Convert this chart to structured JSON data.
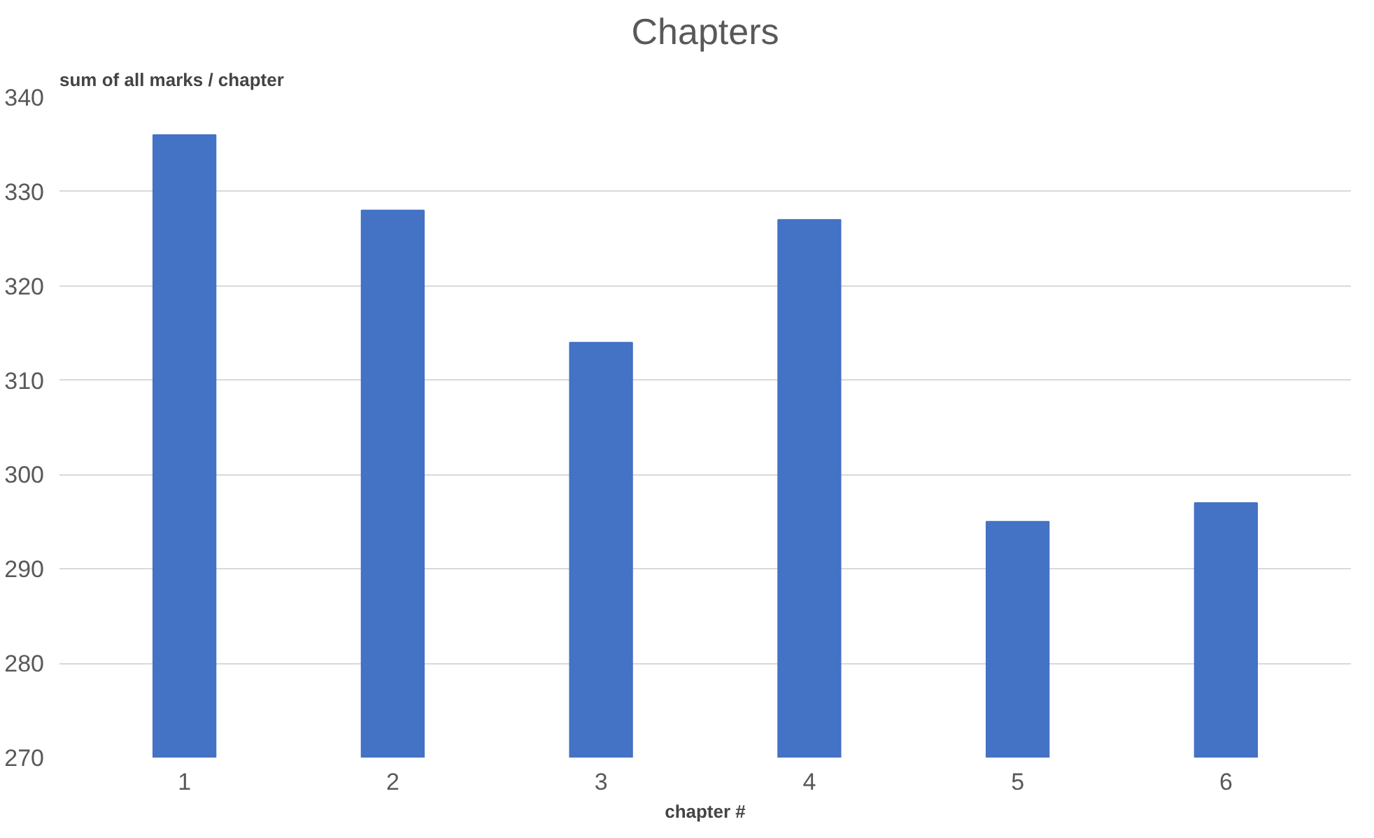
{
  "chart_data": {
    "type": "bar",
    "title": "Chapters",
    "ylabel": "sum of all marks / chapter",
    "xlabel": "chapter #",
    "categories": [
      "1",
      "2",
      "3",
      "4",
      "5",
      "6"
    ],
    "values": [
      336,
      328,
      314,
      327,
      295,
      297
    ],
    "color": "#4472c4",
    "ylim": [
      270,
      340
    ],
    "yticks": [
      270,
      280,
      290,
      300,
      310,
      320,
      330,
      340
    ],
    "grid": "y"
  }
}
